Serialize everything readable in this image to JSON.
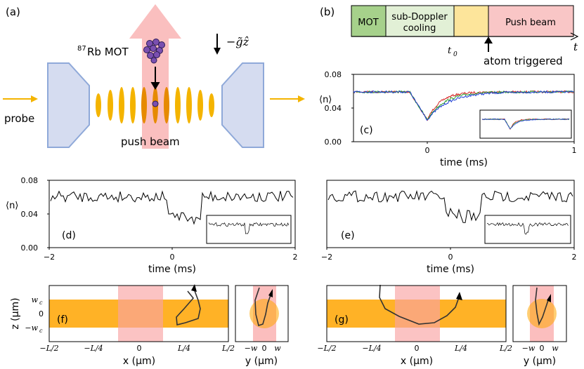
{
  "panel_labels": {
    "a": "(a)",
    "b": "(b)",
    "c": "(c)",
    "d": "(d)",
    "e": "(e)",
    "f": "(f)",
    "g": "(g)"
  },
  "panel_a": {
    "mot_sup": "87",
    "mot_label": "Rb MOT",
    "gravity_label": "−g̃ẑ",
    "probe_label": "probe",
    "push_label": "push beam"
  },
  "panel_b": {
    "stages": [
      {
        "label_lines": [
          "MOT"
        ],
        "color": "#a6d18b"
      },
      {
        "label_lines": [
          "sub-Doppler",
          "cooling"
        ],
        "color": "#e2f0d6"
      },
      {
        "label_lines": [
          ""
        ],
        "color": "#fde59b"
      },
      {
        "label_lines": [
          "Push beam"
        ],
        "color": "#f9c6c6"
      }
    ],
    "t0_label": "t",
    "t0_sub": "0",
    "axis_label": "t",
    "trigger_label": "atom triggered"
  },
  "panel_c": {
    "ylabel": "⟨n⟩",
    "xlabel": "time (ms)",
    "yticks": [
      "0.08",
      "0.04",
      "0.00"
    ],
    "xticks": [
      "0",
      "1"
    ],
    "series_colors": [
      "#d62728",
      "#2ca02c",
      "#1f3fd6"
    ]
  },
  "panel_d": {
    "ylabel": "⟨n⟩",
    "xlabel": "time (ms)",
    "yticks": [
      "0.08",
      "0.04",
      "0.00"
    ],
    "xticks": [
      "−2",
      "0",
      "2"
    ]
  },
  "panel_e": {
    "xlabel": "time (ms)",
    "xticks": [
      "−2",
      "0",
      "2"
    ]
  },
  "panel_f": {
    "zlabel": "z (μm)",
    "zticks": [
      "w",
      "0",
      "−w"
    ],
    "z_sub": "c",
    "xlabel": "x (μm)",
    "xticks": [
      "−L/2",
      "−L/4",
      "0",
      "L/4",
      "L/2"
    ],
    "ylabel": "y (μm)",
    "yticks": [
      "−w",
      "0",
      "w"
    ]
  },
  "panel_g": {
    "xlabel": "x (μm)",
    "xticks": [
      "−L/2",
      "−L/4",
      "0",
      "L/4",
      "L/2"
    ],
    "ylabel": "y (μm)",
    "yticks": [
      "−w",
      "0",
      "w"
    ]
  },
  "colors": {
    "beam_pink": "#f9b8b8",
    "lattice_orange": "#ffa500",
    "mirror_blue": "#d5dcf0",
    "atom_purple": "#7a4fb0"
  }
}
